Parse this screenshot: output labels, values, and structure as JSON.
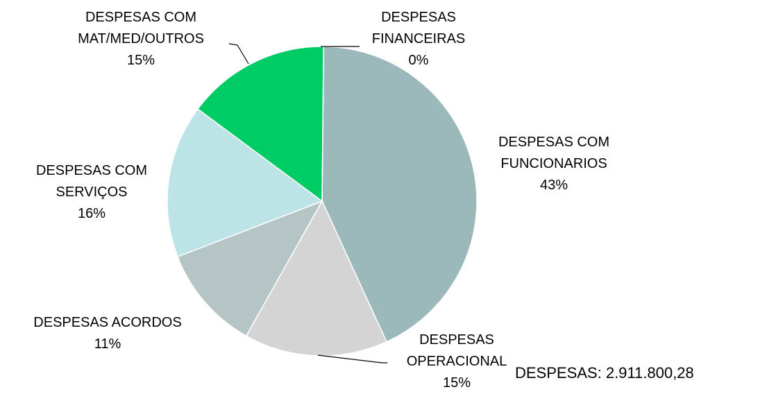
{
  "chart_data": {
    "type": "pie",
    "categories": [
      "DESPESAS COM FUNCIONARIOS",
      "DESPESAS OPERACIONAL",
      "DESPESAS ACORDOS",
      "DESPESAS COM SERVIÇOS",
      "DESPESAS COM MAT/MED/OUTROS",
      "DESPESAS FINANCEIRAS"
    ],
    "values": [
      43,
      15,
      11,
      16,
      15,
      0
    ],
    "value_labels": [
      "43%",
      "15%",
      "11%",
      "16%",
      "15%",
      "0%"
    ],
    "colors": [
      "#9bb9ba",
      "#d4d4d4",
      "#b5c4c4",
      "#bce3e5",
      "#00cc66",
      "#a8cfc6"
    ],
    "annotation": "DESPESAS: 2.911.800,28"
  }
}
